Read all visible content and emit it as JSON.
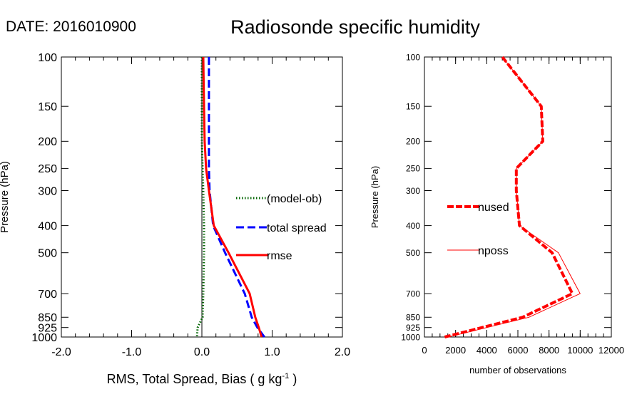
{
  "header": {
    "date_label": "DATE: 2016010900",
    "title": "Radiosonde specific humidity"
  },
  "chart_data": [
    {
      "type": "line",
      "orientation": "vertical-profile",
      "xlabel_main": "RMS, Total Spread, Bias ( g kg",
      "xlabel_sup": "-1",
      "xlabel_end": " )",
      "ylabel": "Pressure (hPa)",
      "xlim": [
        -2.0,
        2.0
      ],
      "ylim": [
        1000,
        100
      ],
      "yscale": "log",
      "xticks": [
        -2.0,
        -1.0,
        0.0,
        1.0,
        2.0
      ],
      "xtick_labels": [
        "-2.0",
        "-1.0",
        "0.0",
        "1.0",
        "2.0"
      ],
      "yticks": [
        100,
        150,
        200,
        250,
        300,
        400,
        500,
        700,
        850,
        925,
        1000
      ],
      "ytick_labels": [
        "100",
        "150",
        "200",
        "250",
        "300",
        "400",
        "500",
        "700",
        "850",
        "925",
        "1000"
      ],
      "zero_line": true,
      "series": [
        {
          "name": "(model-ob)",
          "color": "#006400",
          "style": "dotted",
          "pressure": [
            100,
            150,
            200,
            250,
            300,
            400,
            500,
            700,
            850,
            925,
            1000
          ],
          "values": [
            0.0,
            0.0,
            0.0,
            0.01,
            0.02,
            0.03,
            0.03,
            0.02,
            0.01,
            -0.06,
            -0.07
          ]
        },
        {
          "name": "total spread",
          "color": "#0000ff",
          "style": "dashed",
          "pressure": [
            100,
            150,
            200,
            250,
            300,
            400,
            500,
            700,
            850,
            925,
            1000
          ],
          "values": [
            0.1,
            0.1,
            0.1,
            0.1,
            0.11,
            0.16,
            0.33,
            0.61,
            0.71,
            0.79,
            0.89
          ]
        },
        {
          "name": "rmse",
          "color": "#ff0000",
          "style": "solid",
          "pressure": [
            100,
            150,
            200,
            250,
            300,
            400,
            500,
            700,
            850,
            925,
            1000
          ],
          "values": [
            0.02,
            0.03,
            0.04,
            0.06,
            0.1,
            0.17,
            0.38,
            0.68,
            0.76,
            0.81,
            0.85
          ]
        }
      ],
      "legend_position": "center-right"
    },
    {
      "type": "line",
      "orientation": "vertical-profile",
      "xlabel": "number of observations",
      "ylabel": "Pressure (hPa)",
      "xlim": [
        0,
        12000
      ],
      "ylim": [
        1000,
        100
      ],
      "yscale": "log",
      "xticks": [
        0,
        2000,
        4000,
        6000,
        8000,
        10000,
        12000
      ],
      "xtick_labels": [
        "0",
        "2000",
        "4000",
        "6000",
        "8000",
        "10000",
        "12000"
      ],
      "yticks": [
        100,
        150,
        200,
        250,
        300,
        400,
        500,
        700,
        850,
        925,
        1000
      ],
      "ytick_labels": [
        "100",
        "150",
        "200",
        "250",
        "300",
        "400",
        "500",
        "700",
        "850",
        "925",
        "1000"
      ],
      "series": [
        {
          "name": "nused",
          "color": "#ff0000",
          "style": "thick-dashed",
          "pressure": [
            100,
            150,
            200,
            250,
            300,
            400,
            500,
            700,
            850,
            1000
          ],
          "values": [
            5000,
            7500,
            7600,
            5900,
            5900,
            6100,
            8200,
            9500,
            6300,
            1300
          ]
        },
        {
          "name": "nposs",
          "color": "#ff0000",
          "style": "thin-solid",
          "pressure": [
            100,
            150,
            200,
            250,
            300,
            400,
            500,
            700,
            850,
            1000
          ],
          "values": [
            5000,
            7500,
            7600,
            5900,
            5900,
            6100,
            8600,
            10000,
            6700,
            1500
          ]
        }
      ],
      "legend_position": "left-middle"
    }
  ]
}
